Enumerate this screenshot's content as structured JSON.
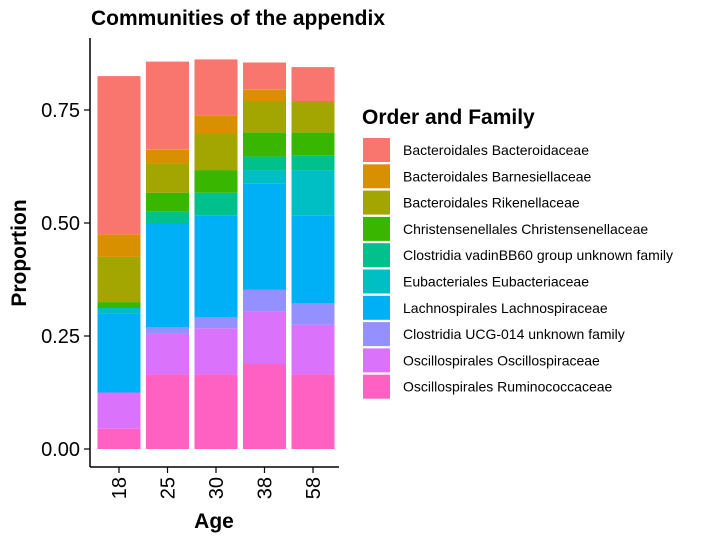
{
  "chart_data": {
    "type": "bar",
    "stacked": true,
    "title": "Communities of the appendix",
    "xlabel": "Age",
    "ylabel": "Proportion",
    "categories": [
      "18",
      "25",
      "30",
      "38",
      "58"
    ],
    "ylim": [
      0,
      0.9
    ],
    "yticks": [
      0.0,
      0.25,
      0.5,
      0.75
    ],
    "ytick_labels": [
      "0.00",
      "0.25",
      "0.50",
      "0.75"
    ],
    "grid": false,
    "legend": {
      "title": "Order and Family",
      "position": "right"
    },
    "series": [
      {
        "name": "Oscillospirales Ruminococcaceae",
        "color": "#FF61C3",
        "values": [
          0.045,
          0.165,
          0.165,
          0.188,
          0.165
        ]
      },
      {
        "name": "Oscillospirales Oscillospiraceae",
        "color": "#DB72FB",
        "values": [
          0.08,
          0.09,
          0.102,
          0.117,
          0.11
        ]
      },
      {
        "name": "Clostridia UCG-014 unknown family",
        "color": "#9590FF",
        "values": [
          0.0,
          0.015,
          0.025,
          0.047,
          0.047
        ]
      },
      {
        "name": "Lachnospirales Lachnospiraceae",
        "color": "#00B0F6",
        "values": [
          0.175,
          0.23,
          0.225,
          0.235,
          0.195
        ]
      },
      {
        "name": "Eubacteriales Eubacteriaceae",
        "color": "#00BFC4",
        "values": [
          0.012,
          0.0,
          0.0,
          0.03,
          0.1
        ]
      },
      {
        "name": "Clostridia vadinBB60 group unknown family",
        "color": "#00C08B",
        "values": [
          0.0,
          0.025,
          0.05,
          0.03,
          0.033
        ]
      },
      {
        "name": "Christensenellales Christensenellaceae",
        "color": "#39B600",
        "values": [
          0.013,
          0.042,
          0.05,
          0.053,
          0.05
        ]
      },
      {
        "name": "Bacteroidales Rikenellaceae",
        "color": "#A3A500",
        "values": [
          0.1,
          0.065,
          0.08,
          0.07,
          0.07
        ]
      },
      {
        "name": "Bacteroidales Barnesiellaceae",
        "color": "#D89000",
        "values": [
          0.05,
          0.03,
          0.04,
          0.025,
          0.0
        ]
      },
      {
        "name": "Bacteroidales Bacteroidaceae",
        "color": "#F8766D",
        "values": [
          0.35,
          0.195,
          0.125,
          0.06,
          0.075
        ]
      }
    ]
  }
}
